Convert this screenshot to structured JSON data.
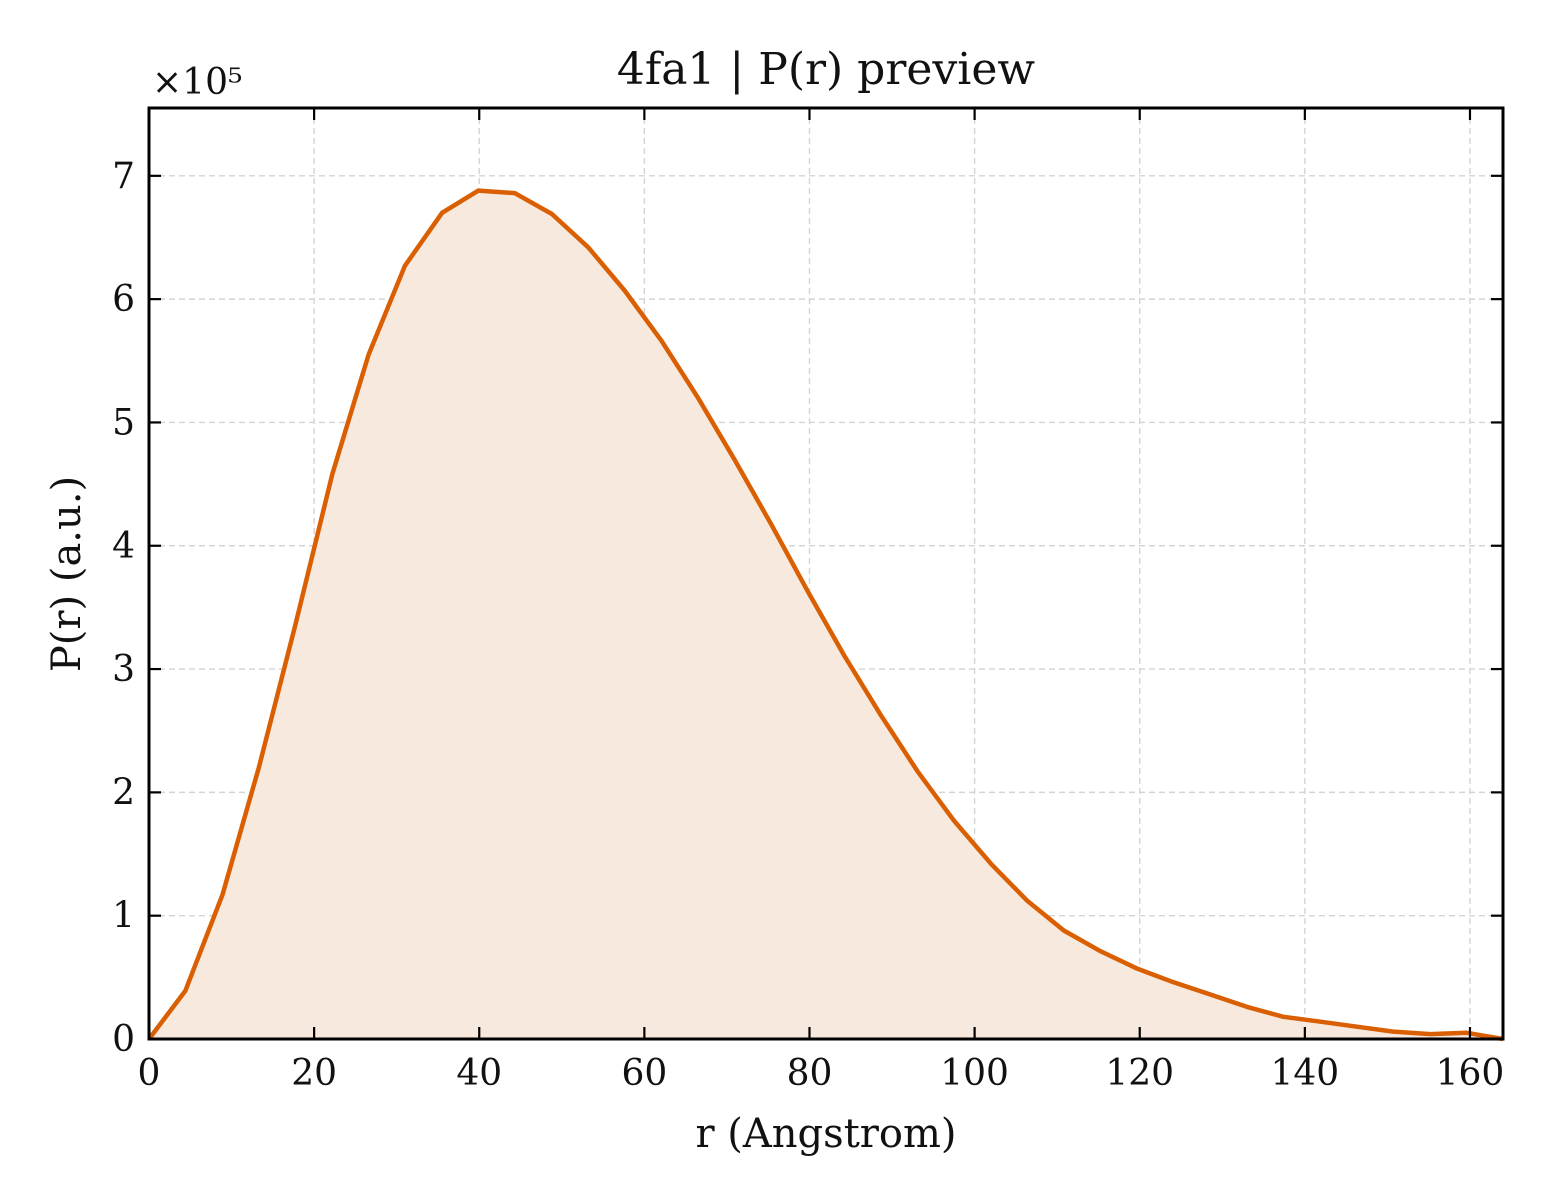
{
  "chart_data": {
    "type": "area",
    "title": "4fa1 | P(r) preview",
    "xlabel": "r (Angstrom)",
    "ylabel": "P(r) (a.u.)",
    "y_multiplier_label": "×10⁵",
    "y_scale_factor": 100000,
    "xlim": [
      0,
      164
    ],
    "ylim": [
      0,
      7.55
    ],
    "x_ticks": [
      0,
      20,
      40,
      60,
      80,
      100,
      120,
      140,
      160
    ],
    "y_ticks": [
      0,
      1,
      2,
      3,
      4,
      5,
      6,
      7
    ],
    "grid": true,
    "line_color": "#d95f02",
    "fill_color": "#f8e9de",
    "series": [
      {
        "x": [
          0,
          4.4,
          8.9,
          13.3,
          17.7,
          22.2,
          26.6,
          31.0,
          35.5,
          39.9,
          44.3,
          48.8,
          53.2,
          57.6,
          62.1,
          66.5,
          70.9,
          75.4,
          79.8,
          84.2,
          88.7,
          93.1,
          97.5,
          102.0,
          106.4,
          110.8,
          115.3,
          119.7,
          124.1,
          128.6,
          133.0,
          137.4,
          141.9,
          146.3,
          150.7,
          155.2,
          159.6,
          164.0
        ],
        "y": [
          0.0,
          0.39,
          1.17,
          2.2,
          3.35,
          4.58,
          5.55,
          6.27,
          6.7,
          6.88,
          6.86,
          6.69,
          6.42,
          6.07,
          5.66,
          5.2,
          4.7,
          4.17,
          3.63,
          3.11,
          2.62,
          2.17,
          1.77,
          1.42,
          1.12,
          0.88,
          0.71,
          0.57,
          0.46,
          0.36,
          0.26,
          0.18,
          0.14,
          0.1,
          0.06,
          0.04,
          0.05,
          0.0
        ]
      }
    ]
  }
}
